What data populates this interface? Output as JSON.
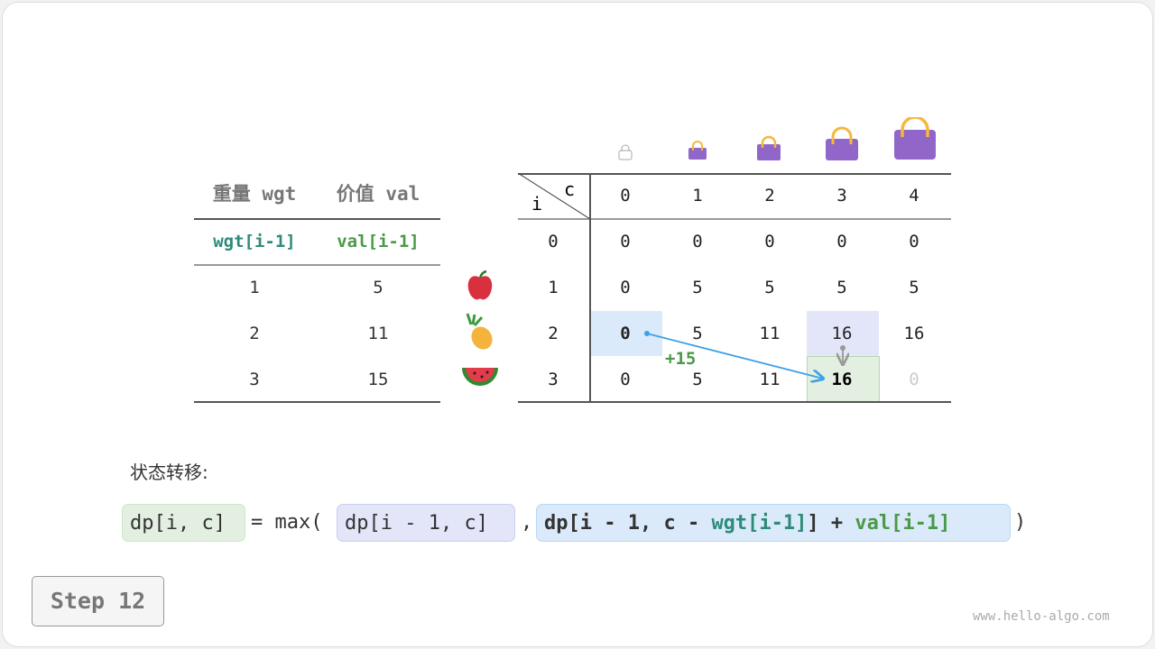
{
  "left_table": {
    "headers": [
      "重量 wgt",
      "价值 val"
    ],
    "subheaders": [
      "wgt[i-1]",
      "val[i-1]"
    ],
    "rows": [
      [
        "1",
        "5"
      ],
      [
        "2",
        "11"
      ],
      [
        "3",
        "15"
      ]
    ]
  },
  "items": [
    "apple-icon",
    "pineapple-icon",
    "watermelon-icon"
  ],
  "dp_table": {
    "corner_i": "i",
    "corner_c": "c",
    "cols": [
      "0",
      "1",
      "2",
      "3",
      "4"
    ],
    "row_labels": [
      "0",
      "1",
      "2",
      "3"
    ],
    "rows": [
      [
        "0",
        "0",
        "0",
        "0",
        "0"
      ],
      [
        "0",
        "5",
        "5",
        "5",
        "5"
      ],
      [
        "0",
        "5",
        "11",
        "16",
        "16"
      ],
      [
        "0",
        "5",
        "11",
        "16",
        "0"
      ]
    ]
  },
  "annotation": "+15",
  "transition_label": "状态转移:",
  "formula": {
    "lhs": "dp[i, c]",
    "eq": "= max(",
    "opt1": "dp[i - 1, c]",
    "comma": ",",
    "opt2_a": "dp[i - 1, c - ",
    "opt2_wgt": "wgt[i-1]",
    "opt2_b": "] + ",
    "opt2_val": "val[i-1]",
    "close": ")"
  },
  "step_label": "Step 12",
  "watermark": "www.hello-algo.com",
  "colors": {
    "teal": "#2e8b7a",
    "green": "#4a9a48",
    "blue_hl": "#dbeafa",
    "purple_hl": "#e2e6f8",
    "green_hl": "#e3f0e1",
    "arrow": "#3ea1e6",
    "bag": "#9166c9"
  }
}
